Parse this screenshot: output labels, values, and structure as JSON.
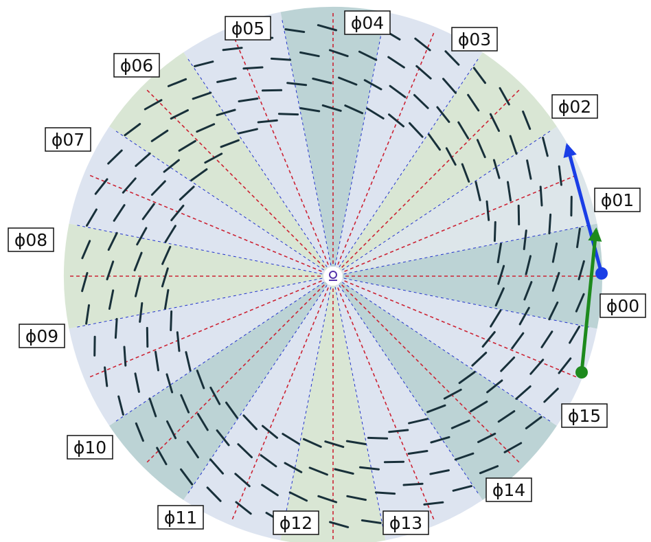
{
  "diagram": {
    "sectors": [
      {
        "id": "00",
        "label": "ϕ00",
        "fill": "#bcd3d5"
      },
      {
        "id": "01",
        "label": "ϕ01",
        "fill": "#dde6ea"
      },
      {
        "id": "02",
        "label": "ϕ02",
        "fill": "#d9e6d4"
      },
      {
        "id": "03",
        "label": "ϕ03",
        "fill": "#dde4f0"
      },
      {
        "id": "04",
        "label": "ϕ04",
        "fill": "#bcd3d5"
      },
      {
        "id": "05",
        "label": "ϕ05",
        "fill": "#dde4f0"
      },
      {
        "id": "06",
        "label": "ϕ06",
        "fill": "#d9e6d4"
      },
      {
        "id": "07",
        "label": "ϕ07",
        "fill": "#dde4f0"
      },
      {
        "id": "08",
        "label": "ϕ08",
        "fill": "#d9e6d4"
      },
      {
        "id": "09",
        "label": "ϕ09",
        "fill": "#dde4f0"
      },
      {
        "id": "10",
        "label": "ϕ10",
        "fill": "#bcd3d5"
      },
      {
        "id": "11",
        "label": "ϕ11",
        "fill": "#dde4f0"
      },
      {
        "id": "12",
        "label": "ϕ12",
        "fill": "#d9e6d4"
      },
      {
        "id": "13",
        "label": "ϕ13",
        "fill": "#dde4f0"
      },
      {
        "id": "14",
        "label": "ϕ14",
        "fill": "#bcd3d5"
      },
      {
        "id": "15",
        "label": "ϕ15",
        "fill": "#dde4f0"
      }
    ],
    "colors": {
      "sector_boundary_line": "#cc2233",
      "sector_mid_line": "#2233cc",
      "dash_segments": "#18303a",
      "blue_arrow": "#1a3ee6",
      "green_arrow": "#1d8a1d",
      "center_marker": "#5533aa"
    },
    "arrows": [
      {
        "name": "blue-arrow",
        "color": "#1a3ee6"
      },
      {
        "name": "green-arrow",
        "color": "#1d8a1d"
      }
    ]
  }
}
